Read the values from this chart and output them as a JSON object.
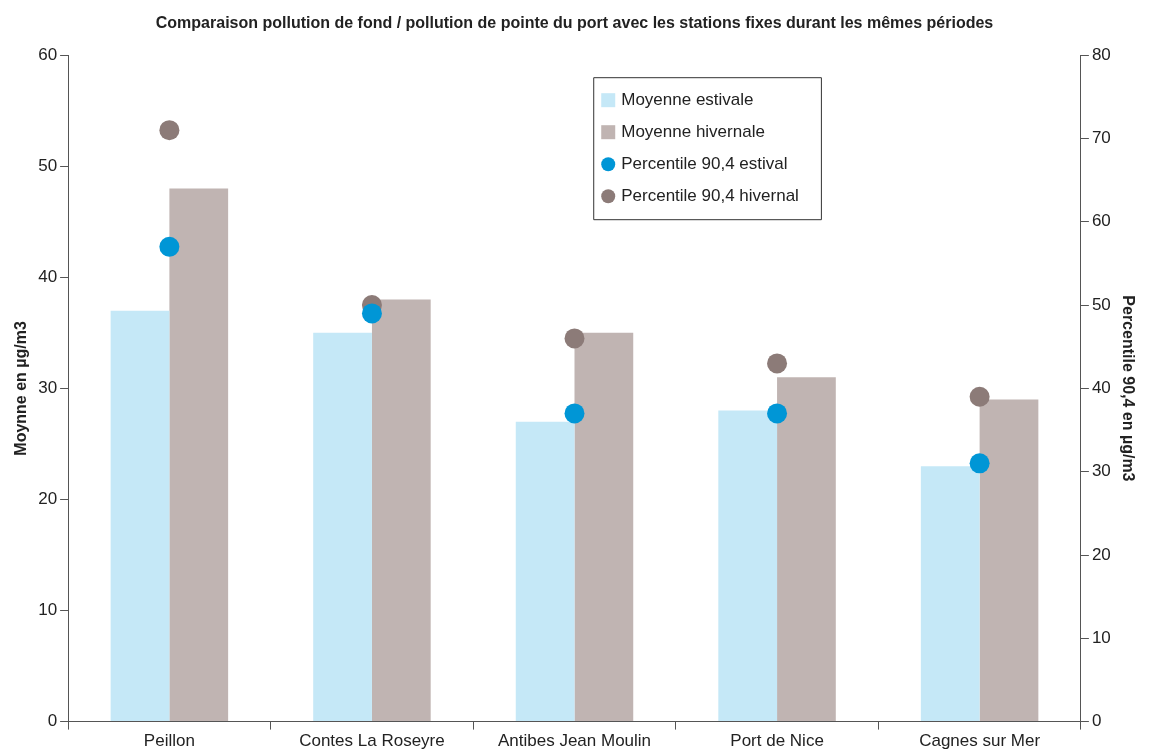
{
  "chart_data": {
    "type": "bar",
    "title": "Comparaison pollution de fond / pollution de pointe du port avec les stations fixes durant les mêmes périodes",
    "categories": [
      "Peillon",
      "Contes La Roseyre",
      "Antibes Jean Moulin",
      "Port de Nice",
      "Cagnes sur Mer"
    ],
    "series": [
      {
        "name": "Moyenne estivale",
        "color": "#c5e8f7",
        "values": [
          37,
          35,
          27,
          28,
          23
        ]
      },
      {
        "name": "Moyenne hivernale",
        "color": "#c0b4b2",
        "values": [
          48,
          38,
          35,
          31,
          29
        ]
      },
      {
        "name": "Percentile 90,4 estival",
        "type": "scatter",
        "axis": "y2",
        "color": "#0096d6",
        "values": [
          57,
          49,
          37,
          37,
          31
        ]
      },
      {
        "name": "Percentile 90,4 hivernal",
        "type": "scatter",
        "axis": "y2",
        "color": "#8c7b78",
        "values": [
          71,
          50,
          46,
          43,
          39
        ]
      }
    ],
    "ylabel": "Moynne en µg/m3",
    "y2label": "Percentile 90,4 en µg/m3",
    "ylim": [
      0,
      60
    ],
    "yticks": [
      0,
      10,
      20,
      30,
      40,
      50,
      60
    ],
    "y2lim": [
      0,
      80
    ],
    "y2ticks": [
      0,
      10,
      20,
      30,
      40,
      50,
      60,
      70,
      80
    ],
    "grid": false,
    "legend": "top right",
    "marker": "circle"
  }
}
